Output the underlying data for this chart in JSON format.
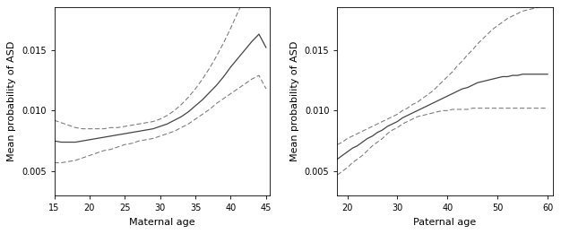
{
  "left": {
    "xlabel": "Maternal age",
    "ylabel": "Mean probability of ASD",
    "xlim": [
      15,
      45.5
    ],
    "ylim": [
      0.003,
      0.0185
    ],
    "xticks": [
      15,
      20,
      25,
      30,
      35,
      40,
      45
    ],
    "yticks": [
      0.005,
      0.01,
      0.015
    ],
    "x": [
      15,
      16,
      17,
      18,
      19,
      20,
      21,
      22,
      23,
      24,
      25,
      26,
      27,
      28,
      29,
      30,
      31,
      32,
      33,
      34,
      35,
      36,
      37,
      38,
      39,
      40,
      41,
      42,
      43,
      44,
      45
    ],
    "y_mean": [
      0.0075,
      0.0074,
      0.0074,
      0.0074,
      0.0075,
      0.0076,
      0.0077,
      0.0078,
      0.0079,
      0.008,
      0.0081,
      0.0082,
      0.0083,
      0.0084,
      0.0085,
      0.0087,
      0.0089,
      0.0092,
      0.0095,
      0.0099,
      0.0104,
      0.0109,
      0.0115,
      0.0121,
      0.0128,
      0.0136,
      0.0143,
      0.015,
      0.0157,
      0.0163,
      0.0152
    ],
    "y_upper": [
      0.0092,
      0.009,
      0.0088,
      0.0086,
      0.0085,
      0.0085,
      0.0085,
      0.0085,
      0.0086,
      0.0086,
      0.0087,
      0.0088,
      0.0089,
      0.009,
      0.0091,
      0.0093,
      0.0096,
      0.01,
      0.0105,
      0.0111,
      0.0118,
      0.0126,
      0.0135,
      0.0145,
      0.0156,
      0.0168,
      0.0181,
      0.0193,
      0.0205,
      0.0217,
      0.021
    ],
    "y_lower": [
      0.0057,
      0.0057,
      0.0058,
      0.0059,
      0.0061,
      0.0063,
      0.0065,
      0.0067,
      0.0068,
      0.007,
      0.0072,
      0.0073,
      0.0075,
      0.0076,
      0.0077,
      0.0079,
      0.0081,
      0.0083,
      0.0086,
      0.0089,
      0.0093,
      0.0097,
      0.0101,
      0.0106,
      0.011,
      0.0114,
      0.0118,
      0.0122,
      0.0126,
      0.0129,
      0.0118
    ]
  },
  "right": {
    "xlabel": "Paternal age",
    "ylabel": "Mean probability of ASD",
    "xlim": [
      18,
      61
    ],
    "ylim": [
      0.003,
      0.0185
    ],
    "xticks": [
      20,
      30,
      40,
      50,
      60
    ],
    "yticks": [
      0.005,
      0.01,
      0.015
    ],
    "x": [
      18,
      19,
      20,
      21,
      22,
      23,
      24,
      25,
      26,
      27,
      28,
      29,
      30,
      31,
      32,
      33,
      34,
      35,
      36,
      37,
      38,
      39,
      40,
      41,
      42,
      43,
      44,
      45,
      46,
      47,
      48,
      49,
      50,
      51,
      52,
      53,
      54,
      55,
      56,
      57,
      58,
      59,
      60
    ],
    "y_mean": [
      0.006,
      0.0063,
      0.0066,
      0.0069,
      0.0071,
      0.0074,
      0.0077,
      0.0079,
      0.0082,
      0.0084,
      0.0087,
      0.0089,
      0.0091,
      0.0094,
      0.0096,
      0.0098,
      0.01,
      0.0102,
      0.0104,
      0.0106,
      0.0108,
      0.011,
      0.0112,
      0.0114,
      0.0116,
      0.0118,
      0.0119,
      0.0121,
      0.0123,
      0.0124,
      0.0125,
      0.0126,
      0.0127,
      0.0128,
      0.0128,
      0.0129,
      0.0129,
      0.013,
      0.013,
      0.013,
      0.013,
      0.013,
      0.013
    ],
    "y_upper": [
      0.0072,
      0.0074,
      0.0077,
      0.0079,
      0.0081,
      0.0083,
      0.0085,
      0.0087,
      0.0089,
      0.0091,
      0.0093,
      0.0095,
      0.0097,
      0.01,
      0.0102,
      0.0105,
      0.0107,
      0.011,
      0.0113,
      0.0116,
      0.012,
      0.0124,
      0.0128,
      0.0132,
      0.0137,
      0.0141,
      0.0146,
      0.015,
      0.0155,
      0.0159,
      0.0163,
      0.0167,
      0.017,
      0.0173,
      0.0176,
      0.0178,
      0.018,
      0.0182,
      0.0183,
      0.0184,
      0.0185,
      0.0186,
      0.0186
    ],
    "y_lower": [
      0.0047,
      0.005,
      0.0053,
      0.0057,
      0.006,
      0.0063,
      0.0067,
      0.0071,
      0.0074,
      0.0077,
      0.0081,
      0.0084,
      0.0086,
      0.0089,
      0.0091,
      0.0093,
      0.0095,
      0.0096,
      0.0097,
      0.0098,
      0.0099,
      0.01,
      0.01,
      0.0101,
      0.0101,
      0.0101,
      0.0101,
      0.0102,
      0.0102,
      0.0102,
      0.0102,
      0.0102,
      0.0102,
      0.0102,
      0.0102,
      0.0102,
      0.0102,
      0.0102,
      0.0102,
      0.0102,
      0.0102,
      0.0102,
      0.0102
    ]
  },
  "line_color": "#444444",
  "dash_color": "#777777",
  "bg_color": "#ffffff",
  "fig_bg_color": "#ffffff",
  "ytick_labels": [
    "0.005",
    "0.010",
    "0.015"
  ]
}
